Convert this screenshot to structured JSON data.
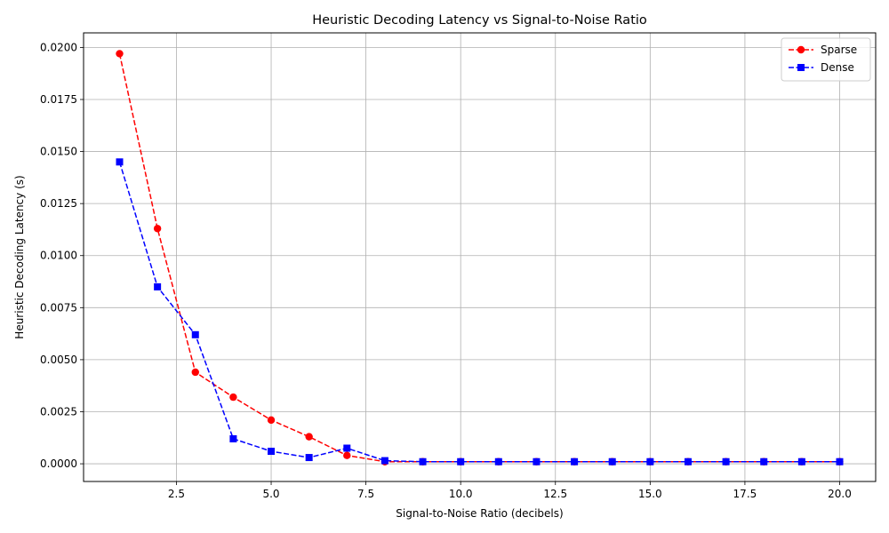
{
  "chart_data": {
    "type": "line",
    "title": "Heuristic Decoding Latency vs Signal-to-Noise Ratio",
    "xlabel": "Signal-to-Noise Ratio (decibels)",
    "ylabel": "Heuristic Decoding Latency (s)",
    "xlim": [
      0.05,
      20.95
    ],
    "ylim": [
      -0.00085,
      0.0207
    ],
    "xticks": [
      2.5,
      5.0,
      7.5,
      10.0,
      12.5,
      15.0,
      17.5,
      20.0
    ],
    "xtick_labels": [
      "2.5",
      "5.0",
      "7.5",
      "10.0",
      "12.5",
      "15.0",
      "17.5",
      "20.0"
    ],
    "yticks": [
      0.0,
      0.0025,
      0.005,
      0.0075,
      0.01,
      0.0125,
      0.015,
      0.0175,
      0.02
    ],
    "ytick_labels": [
      "0.0000",
      "0.0025",
      "0.0050",
      "0.0075",
      "0.0100",
      "0.0125",
      "0.0150",
      "0.0175",
      "0.0200"
    ],
    "grid": true,
    "legend_position": "top-right",
    "x": [
      1,
      2,
      3,
      4,
      5,
      6,
      7,
      8,
      9,
      10,
      11,
      12,
      13,
      14,
      15,
      16,
      17,
      18,
      19,
      20
    ],
    "series": [
      {
        "name": "Sparse",
        "color": "#ff0000",
        "marker": "circle",
        "linestyle": "dashed",
        "values": [
          0.0197,
          0.0113,
          0.0044,
          0.0032,
          0.0021,
          0.0013,
          0.0004,
          0.0001,
          0.0001,
          0.0001,
          0.0001,
          0.0001,
          0.0001,
          0.0001,
          0.0001,
          0.0001,
          0.0001,
          0.0001,
          0.0001,
          0.0001
        ]
      },
      {
        "name": "Dense",
        "color": "#0000ff",
        "marker": "square",
        "linestyle": "dashed",
        "values": [
          0.0145,
          0.0085,
          0.0062,
          0.0012,
          0.0006,
          0.0003,
          0.00075,
          0.00015,
          0.0001,
          0.0001,
          0.0001,
          0.0001,
          0.0001,
          0.0001,
          0.0001,
          0.0001,
          0.0001,
          0.0001,
          0.0001,
          0.0001
        ]
      }
    ]
  }
}
